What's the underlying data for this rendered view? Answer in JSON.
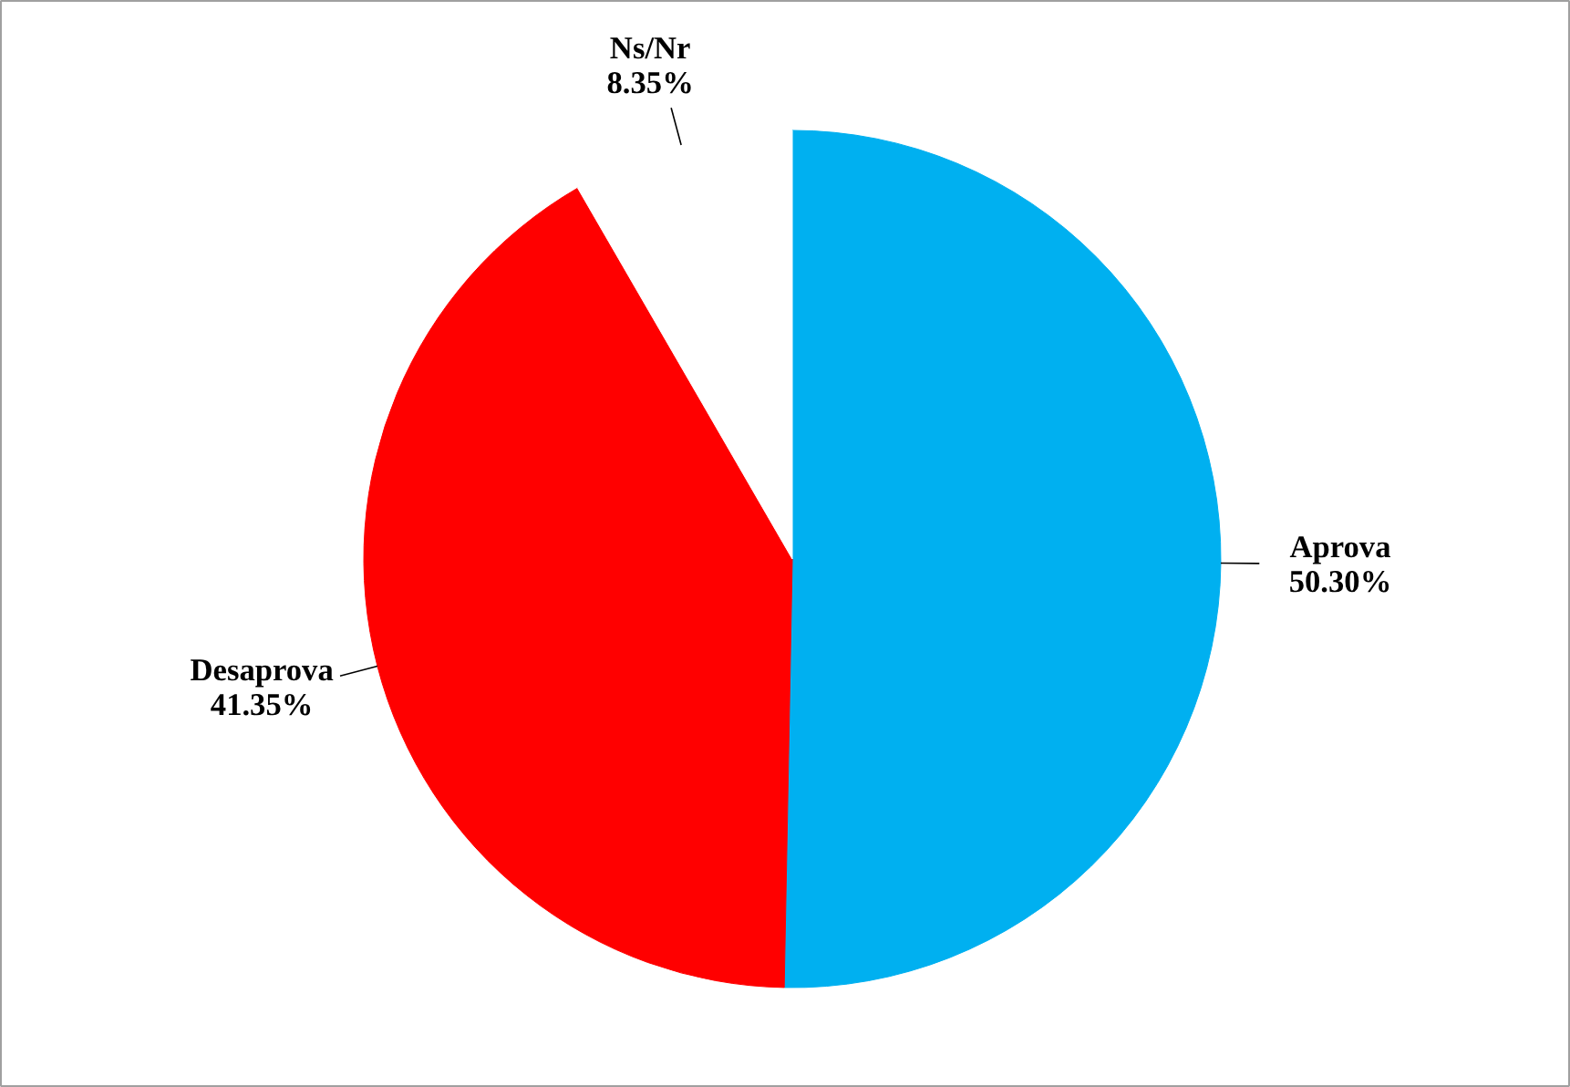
{
  "chart_data": {
    "type": "pie",
    "categories": [
      "Aprova",
      "Desaprova",
      "Ns/Nr"
    ],
    "values": [
      50.3,
      41.35,
      8.35
    ],
    "colors": [
      "#00b0f0",
      "#ff0000",
      "#ffffff"
    ],
    "value_labels": [
      "50.30%",
      "41.35%",
      "8.35%"
    ]
  }
}
